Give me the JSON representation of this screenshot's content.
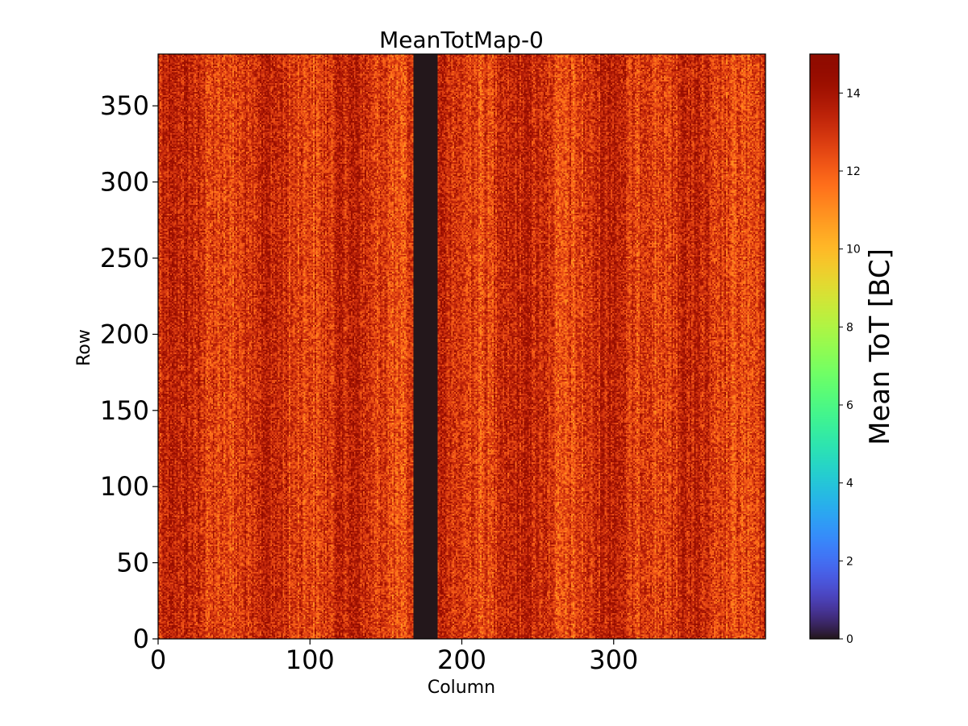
{
  "chart_data": {
    "type": "heatmap",
    "title": "MeanTotMap-0",
    "xlabel": "Column",
    "ylabel": "Row",
    "xlim": [
      0,
      400
    ],
    "ylim": [
      0,
      384
    ],
    "x_ticks": [
      0,
      100,
      200,
      300
    ],
    "x_tick_labels": [
      "0",
      "100",
      "200",
      "300"
    ],
    "y_ticks": [
      0,
      50,
      100,
      150,
      200,
      250,
      300,
      350
    ],
    "y_tick_labels": [
      "0",
      "50",
      "100",
      "150",
      "200",
      "250",
      "300",
      "350"
    ],
    "grid": false,
    "colormap": "turbo",
    "colorbar": {
      "label": "Mean ToT [BC]",
      "range": [
        0,
        15
      ],
      "ticks": [
        0,
        2,
        4,
        6,
        8,
        10,
        12,
        14
      ],
      "tick_labels": [
        "0",
        "2",
        "4",
        "6",
        "8",
        "10",
        "12",
        "14"
      ],
      "placement": "right"
    },
    "n_columns": 400,
    "n_rows": 384,
    "typical_value_range": [
      11,
      14.5
    ],
    "typical_mean_value": 13,
    "dead_column_range": [
      168,
      184
    ],
    "dead_column_value": 0
  }
}
